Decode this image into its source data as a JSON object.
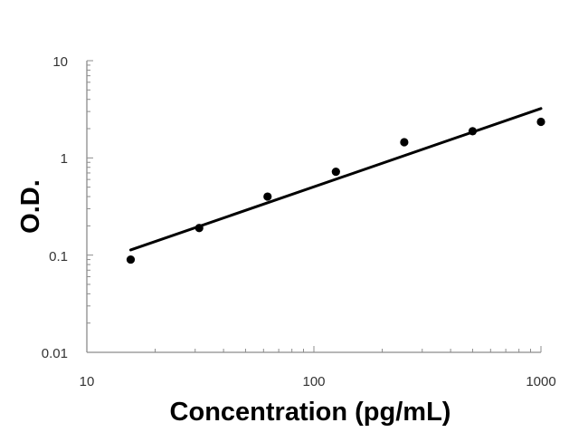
{
  "chart_data": {
    "type": "scatter",
    "title": "",
    "xlabel": "Concentration (pg/mL)",
    "ylabel": "O.D.",
    "x_scale": "log",
    "y_scale": "log",
    "xlim": [
      10,
      1000
    ],
    "ylim": [
      0.01,
      10
    ],
    "x_ticks": [
      "10",
      "100",
      "1000"
    ],
    "y_ticks": [
      "10",
      "1",
      "0.1",
      "0.01"
    ],
    "grid": false,
    "legend": "none",
    "series": [
      {
        "x": [
          15.6,
          31.25,
          62.5,
          125,
          250,
          500,
          1000
        ],
        "y": [
          0.09,
          0.19,
          0.4,
          0.72,
          1.45,
          1.88,
          2.35
        ]
      }
    ],
    "trendline": {
      "x": [
        15.6,
        1000
      ],
      "y": [
        0.113,
        3.22
      ]
    },
    "colors": {
      "points": "#000000",
      "line": "#000000",
      "axis": "#8c8c8c"
    }
  }
}
